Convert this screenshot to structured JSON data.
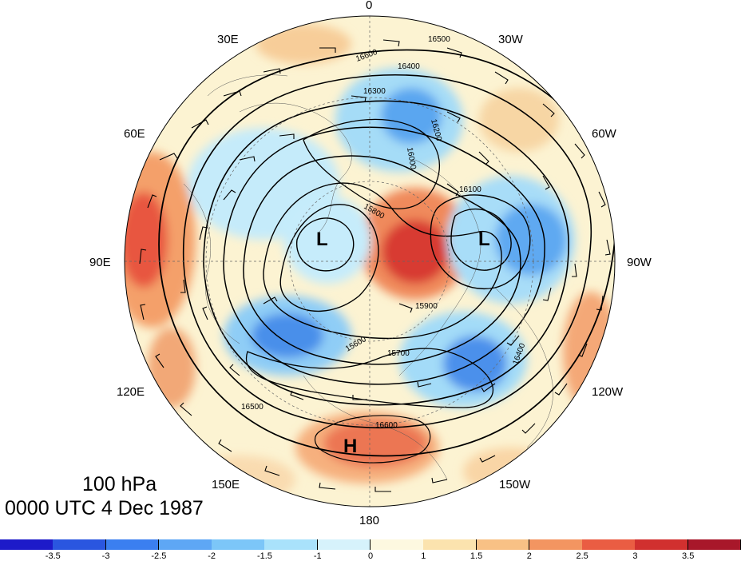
{
  "map": {
    "longitude_labels": [
      {
        "id": "0",
        "text": "0"
      },
      {
        "id": "30e",
        "text": "30E"
      },
      {
        "id": "30w",
        "text": "30W"
      },
      {
        "id": "60e",
        "text": "60E"
      },
      {
        "id": "60w",
        "text": "60W"
      },
      {
        "id": "90e",
        "text": "90E"
      },
      {
        "id": "90w",
        "text": "90W"
      },
      {
        "id": "120e",
        "text": "120E"
      },
      {
        "id": "120w",
        "text": "120W"
      },
      {
        "id": "150e",
        "text": "150E"
      },
      {
        "id": "150w",
        "text": "150W"
      },
      {
        "id": "180",
        "text": "180"
      }
    ],
    "pressure_centers": {
      "low_symbol": "L",
      "high_symbol": "H"
    },
    "contour_labels": [
      "16500",
      "16600",
      "16400",
      "16300",
      "16200",
      "16100",
      "16000",
      "15900",
      "15800",
      "16600",
      "15600",
      "15700",
      "16500",
      "16400"
    ]
  },
  "caption": {
    "level": "100 hPa",
    "time": "0000 UTC 4 Dec 1987"
  },
  "colorbar": {
    "colors": [
      "#1d1ac9",
      "#2a56e0",
      "#3b7ff0",
      "#5ea7f5",
      "#7cc6f8",
      "#a9e2fb",
      "#d6f2fb",
      "#fdf8e0",
      "#fbe3ae",
      "#f8c185",
      "#f39561",
      "#ea5d43",
      "#d1302f",
      "#a8172a"
    ],
    "tick_labels": [
      "-3.5",
      "-3",
      "-2.5",
      "-2",
      "-1.5",
      "-1",
      "0",
      "1",
      "1.5",
      "2",
      "2.5",
      "3",
      "3.5"
    ]
  }
}
